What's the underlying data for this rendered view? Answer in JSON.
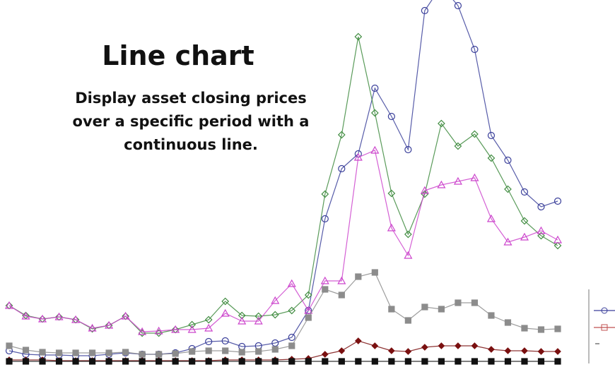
{
  "chart_data": {
    "type": "line",
    "title": "Line chart",
    "subtitle_lines": [
      "Display asset closing prices",
      "over a specific period with a",
      "continuous line."
    ],
    "categories": [
      null,
      null,
      null,
      null,
      null,
      null,
      null,
      null,
      null,
      null,
      null,
      null,
      null,
      null,
      null,
      null,
      null,
      null,
      null,
      null,
      null,
      null,
      null,
      null,
      null,
      null,
      null,
      null,
      null,
      null,
      null,
      null,
      null,
      null
    ],
    "ylim": [
      0,
      103
    ],
    "series": [
      {
        "color": "#3a3f9a",
        "marker": "circle",
        "values": [
          3.6,
          2.6,
          2.4,
          2.4,
          2.2,
          2.2,
          2.6,
          3,
          2.6,
          2.6,
          3,
          4.2,
          6.2,
          6.4,
          4.8,
          5,
          5.8,
          7.4,
          15,
          41,
          55.2,
          59.4,
          78,
          70,
          60.6,
          100,
          107,
          101.4,
          89,
          64.6,
          57.6,
          48.6,
          44.4,
          46
        ]
      },
      {
        "color": "#3d8a3d",
        "marker": "diamond",
        "values": [
          16.4,
          13.6,
          12.6,
          13.2,
          12.4,
          9.8,
          10.8,
          13.4,
          8.6,
          8.6,
          9.6,
          11,
          12.4,
          17.6,
          13.6,
          13.4,
          13.8,
          15,
          19.4,
          48,
          64.8,
          92.6,
          71,
          48.2,
          36.6,
          48,
          68,
          61.6,
          65,
          58.2,
          49.4,
          40.4,
          36.2,
          33.4
        ]
      },
      {
        "color": "#cc44cc",
        "marker": "triangle",
        "values": [
          16.4,
          13.4,
          12.6,
          13.2,
          12.4,
          10,
          10.8,
          13.4,
          9,
          9.2,
          9.6,
          9.6,
          10,
          14.2,
          12,
          12,
          17.8,
          22.6,
          15,
          23.4,
          23.4,
          58.4,
          60.4,
          38.4,
          30.6,
          49,
          50.6,
          51.6,
          52.6,
          41,
          34.4,
          35.8,
          37.6,
          35
        ]
      },
      {
        "color": "#8c8c8c",
        "marker": "square",
        "values": [
          5,
          3.8,
          3.2,
          3,
          3,
          3,
          3,
          3.2,
          2.6,
          2.6,
          2.8,
          3.4,
          3.6,
          3.6,
          3.2,
          3.4,
          4,
          5,
          13,
          21,
          19.4,
          24.6,
          25.8,
          15.4,
          12.2,
          16,
          15.4,
          17.2,
          17.2,
          13.6,
          11.6,
          10,
          9.6,
          9.8
        ]
      },
      {
        "color": "#7a1010",
        "marker": "filled-diamond",
        "values": [
          1,
          1,
          1,
          0.8,
          0.8,
          0.8,
          0.8,
          0.8,
          0.8,
          0.8,
          0.8,
          0.8,
          0.8,
          1,
          1,
          1,
          1,
          1.2,
          1.4,
          2.6,
          3.6,
          6.4,
          5,
          3.6,
          3.4,
          4.6,
          5,
          5,
          5,
          4,
          3.6,
          3.6,
          3.4,
          3.4
        ]
      },
      {
        "color": "#111111",
        "marker": "square",
        "values": [
          0.6,
          0.6,
          0.6,
          0.6,
          0.6,
          0.6,
          0.6,
          0.6,
          0.6,
          0.6,
          0.6,
          0.6,
          0.6,
          0.6,
          0.6,
          0.6,
          0.6,
          0.6,
          0.6,
          0.6,
          0.6,
          0.6,
          0.6,
          0.6,
          0.6,
          0.6,
          0.6,
          0.6,
          0.6,
          0.6,
          0.6,
          0.6,
          0.6,
          0.6
        ]
      }
    ]
  }
}
